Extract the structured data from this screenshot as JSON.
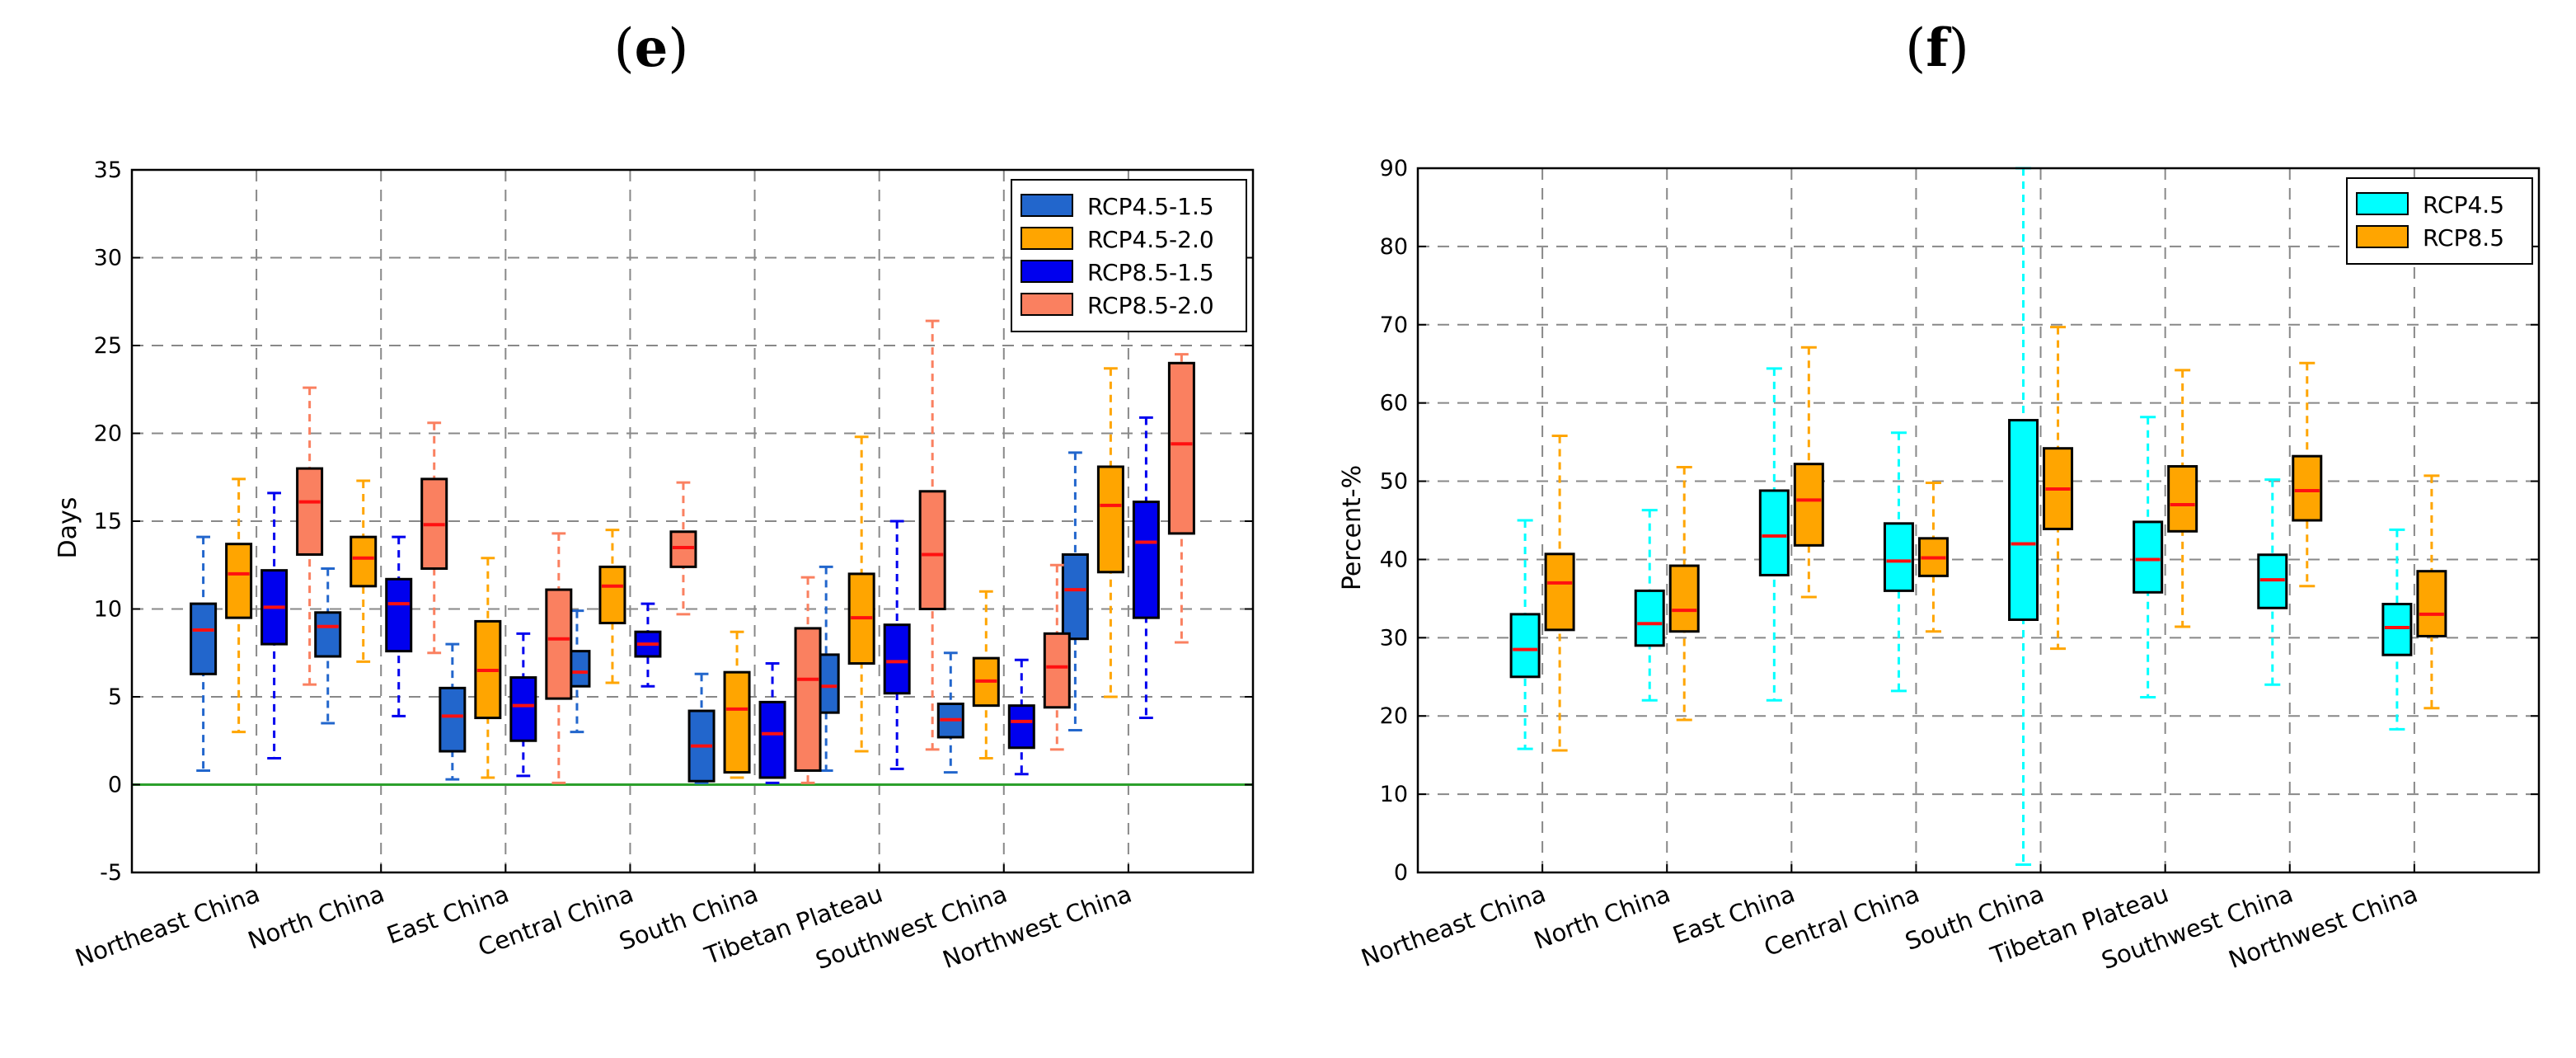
{
  "chart_data": [
    {
      "panel_label": "(e)",
      "type": "boxplot",
      "ylabel": "Days",
      "ylim": [
        -5,
        35
      ],
      "yticks": [
        -5,
        0,
        5,
        10,
        15,
        20,
        25,
        30,
        35
      ],
      "zero_line": {
        "value": 0,
        "color": "#2ca02c"
      },
      "legend_position": "top-right",
      "categories": [
        "Northeast China",
        "North China",
        "East China",
        "Central China",
        "South China",
        "Tibetan Plateau",
        "Southwest China",
        "Northwest China"
      ],
      "series": [
        {
          "name": "RCP4.5-1.5",
          "color": "#2266cc",
          "boxes": [
            {
              "min": 0.8,
              "q1": 6.3,
              "median": 8.8,
              "q3": 10.3,
              "max": 14.1
            },
            {
              "min": 3.5,
              "q1": 7.3,
              "median": 9.0,
              "q3": 9.8,
              "max": 12.3
            },
            {
              "min": 0.3,
              "q1": 1.9,
              "median": 3.9,
              "q3": 5.5,
              "max": 8.0
            },
            {
              "min": 3.0,
              "q1": 5.6,
              "median": 6.4,
              "q3": 7.6,
              "max": 9.9
            },
            {
              "min": 0.1,
              "q1": 0.2,
              "median": 2.2,
              "q3": 4.2,
              "max": 6.3
            },
            {
              "min": 0.8,
              "q1": 4.1,
              "median": 5.6,
              "q3": 7.4,
              "max": 12.4
            },
            {
              "min": 0.7,
              "q1": 2.7,
              "median": 3.7,
              "q3": 4.6,
              "max": 7.5
            },
            {
              "min": 3.1,
              "q1": 8.3,
              "median": 11.1,
              "q3": 13.1,
              "max": 18.9
            }
          ]
        },
        {
          "name": "RCP4.5-2.0",
          "color": "#ffa500",
          "boxes": [
            {
              "min": 3.0,
              "q1": 9.5,
              "median": 12.0,
              "q3": 13.7,
              "max": 17.4
            },
            {
              "min": 7.0,
              "q1": 11.3,
              "median": 12.9,
              "q3": 14.1,
              "max": 17.3
            },
            {
              "min": 0.4,
              "q1": 3.8,
              "median": 6.5,
              "q3": 9.3,
              "max": 12.9
            },
            {
              "min": 5.8,
              "q1": 9.2,
              "median": 11.3,
              "q3": 12.4,
              "max": 14.5
            },
            {
              "min": 0.4,
              "q1": 0.7,
              "median": 4.3,
              "q3": 6.4,
              "max": 8.7
            },
            {
              "min": 1.9,
              "q1": 6.9,
              "median": 9.5,
              "q3": 12.0,
              "max": 19.8
            },
            {
              "min": 1.5,
              "q1": 4.5,
              "median": 5.9,
              "q3": 7.2,
              "max": 11.0
            },
            {
              "min": 5.0,
              "q1": 12.1,
              "median": 15.9,
              "q3": 18.1,
              "max": 23.7
            }
          ]
        },
        {
          "name": "RCP8.5-1.5",
          "color": "#0000ee",
          "boxes": [
            {
              "min": 1.5,
              "q1": 8.0,
              "median": 10.1,
              "q3": 12.2,
              "max": 16.6
            },
            {
              "min": 3.9,
              "q1": 7.6,
              "median": 10.3,
              "q3": 11.7,
              "max": 14.1
            },
            {
              "min": 0.5,
              "q1": 2.5,
              "median": 4.5,
              "q3": 6.1,
              "max": 8.6
            },
            {
              "min": 5.6,
              "q1": 7.3,
              "median": 8.0,
              "q3": 8.7,
              "max": 10.3
            },
            {
              "min": 0.1,
              "q1": 0.4,
              "median": 2.9,
              "q3": 4.7,
              "max": 6.9
            },
            {
              "min": 0.9,
              "q1": 5.2,
              "median": 7.0,
              "q3": 9.1,
              "max": 15.0
            },
            {
              "min": 0.6,
              "q1": 2.1,
              "median": 3.6,
              "q3": 4.5,
              "max": 7.1
            },
            {
              "min": 3.8,
              "q1": 9.5,
              "median": 13.8,
              "q3": 16.1,
              "max": 20.9
            }
          ]
        },
        {
          "name": "RCP8.5-2.0",
          "color": "#fa8060",
          "boxes": [
            {
              "min": 5.7,
              "q1": 13.1,
              "median": 16.1,
              "q3": 18.0,
              "max": 22.6
            },
            {
              "min": 7.5,
              "q1": 12.3,
              "median": 14.8,
              "q3": 17.4,
              "max": 20.6
            },
            {
              "min": 0.1,
              "q1": 4.9,
              "median": 8.3,
              "q3": 11.1,
              "max": 14.3
            },
            {
              "min": 9.7,
              "q1": 12.4,
              "median": 13.5,
              "q3": 14.4,
              "max": 17.2
            },
            {
              "min": 0.1,
              "q1": 0.8,
              "median": 6.0,
              "q3": 8.9,
              "max": 11.8
            },
            {
              "min": 2.0,
              "q1": 10.0,
              "median": 13.1,
              "q3": 16.7,
              "max": 26.4
            },
            {
              "min": 2.0,
              "q1": 4.4,
              "median": 6.7,
              "q3": 8.6,
              "max": 12.5
            },
            {
              "min": 8.1,
              "q1": 14.3,
              "median": 19.4,
              "q3": 24.0,
              "max": 24.5
            }
          ]
        }
      ]
    },
    {
      "panel_label": "(f)",
      "type": "boxplot",
      "ylabel": "Percent-%",
      "ylim": [
        0,
        90
      ],
      "yticks": [
        0,
        10,
        20,
        30,
        40,
        50,
        60,
        70,
        80,
        90
      ],
      "legend_position": "top-right",
      "categories": [
        "Northeast China",
        "North China",
        "East China",
        "Central China",
        "South China",
        "Tibetan Plateau",
        "Southwest China",
        "Northwest China"
      ],
      "series": [
        {
          "name": "RCP4.5",
          "color": "#00ffff",
          "boxes": [
            {
              "min": 15.8,
              "q1": 25.0,
              "median": 28.5,
              "q3": 33.0,
              "max": 45.0
            },
            {
              "min": 22.0,
              "q1": 29.0,
              "median": 31.8,
              "q3": 36.0,
              "max": 46.3
            },
            {
              "min": 22.0,
              "q1": 38.0,
              "median": 43.0,
              "q3": 48.8,
              "max": 64.4
            },
            {
              "min": 23.2,
              "q1": 36.0,
              "median": 39.8,
              "q3": 44.6,
              "max": 56.2
            },
            {
              "min": 1.0,
              "q1": 32.3,
              "median": 42.0,
              "q3": 57.8,
              "max": 90.0
            },
            {
              "min": 22.4,
              "q1": 35.8,
              "median": 40.0,
              "q3": 44.8,
              "max": 58.2
            },
            {
              "min": 24.0,
              "q1": 33.8,
              "median": 37.4,
              "q3": 40.6,
              "max": 50.2
            },
            {
              "min": 18.3,
              "q1": 27.8,
              "median": 31.3,
              "q3": 34.3,
              "max": 43.8
            }
          ]
        },
        {
          "name": "RCP8.5",
          "color": "#ffa500",
          "boxes": [
            {
              "min": 15.6,
              "q1": 31.0,
              "median": 37.0,
              "q3": 40.7,
              "max": 55.8
            },
            {
              "min": 19.5,
              "q1": 30.8,
              "median": 33.5,
              "q3": 39.2,
              "max": 51.8
            },
            {
              "min": 35.2,
              "q1": 41.8,
              "median": 47.6,
              "q3": 52.2,
              "max": 67.1
            },
            {
              "min": 30.8,
              "q1": 37.9,
              "median": 40.2,
              "q3": 42.7,
              "max": 49.8
            },
            {
              "min": 28.6,
              "q1": 43.9,
              "median": 49.0,
              "q3": 54.2,
              "max": 69.7
            },
            {
              "min": 31.4,
              "q1": 43.6,
              "median": 47.0,
              "q3": 51.9,
              "max": 64.2
            },
            {
              "min": 36.6,
              "q1": 45.0,
              "median": 48.8,
              "q3": 53.2,
              "max": 65.1
            },
            {
              "min": 21.0,
              "q1": 30.2,
              "median": 33.0,
              "q3": 38.5,
              "max": 50.7
            }
          ]
        }
      ]
    }
  ]
}
